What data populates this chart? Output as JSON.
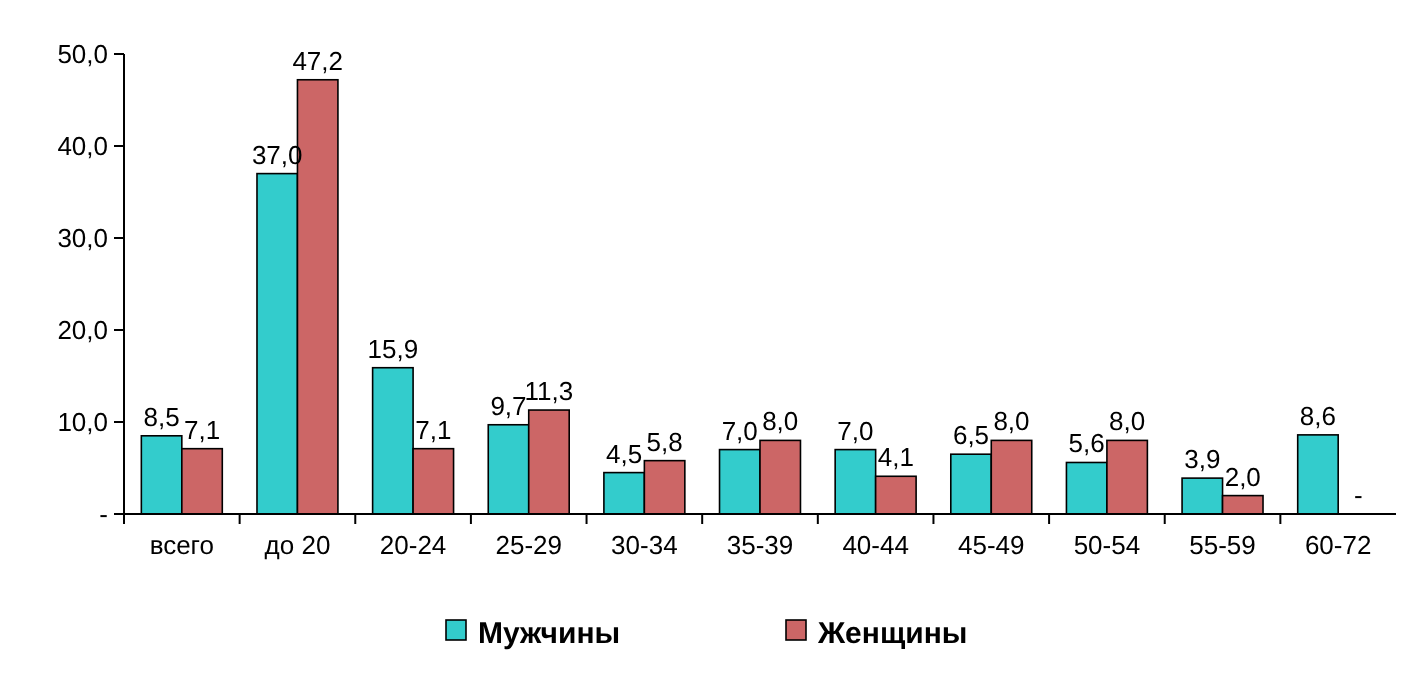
{
  "chart_data": {
    "type": "bar",
    "categories": [
      "всего",
      "до 20",
      "20-24",
      "25-29",
      "30-34",
      "35-39",
      "40-44",
      "45-49",
      "50-54",
      "55-59",
      "60-72"
    ],
    "series": [
      {
        "name": "Мужчины",
        "color": "#33cccc",
        "values": [
          8.5,
          37.0,
          15.9,
          9.7,
          4.5,
          7.0,
          7.0,
          6.5,
          5.6,
          3.9,
          8.6
        ],
        "value_labels": [
          "8,5",
          "37,0",
          "15,9",
          "9,7",
          "4,5",
          "7,0",
          "7,0",
          "6,5",
          "5,6",
          "3,9",
          "8,6"
        ]
      },
      {
        "name": "Женщины",
        "color": "#cc6666",
        "values": [
          7.1,
          47.2,
          7.1,
          11.3,
          5.8,
          8.0,
          4.1,
          8.0,
          8.0,
          2.0,
          null
        ],
        "value_labels": [
          "7,1",
          "47,2",
          "7,1",
          "11,3",
          "5,8",
          "8,0",
          "4,1",
          "8,0",
          "8,0",
          "2,0",
          "-"
        ]
      }
    ],
    "ylim": [
      0,
      50
    ],
    "yticks": [
      {
        "value": 0,
        "label": "-"
      },
      {
        "value": 10,
        "label": "10,0"
      },
      {
        "value": 20,
        "label": "20,0"
      },
      {
        "value": 30,
        "label": "30,0"
      },
      {
        "value": 40,
        "label": "40,0"
      },
      {
        "value": 50,
        "label": "50,0"
      }
    ],
    "grid": false,
    "legend": "bottom"
  }
}
